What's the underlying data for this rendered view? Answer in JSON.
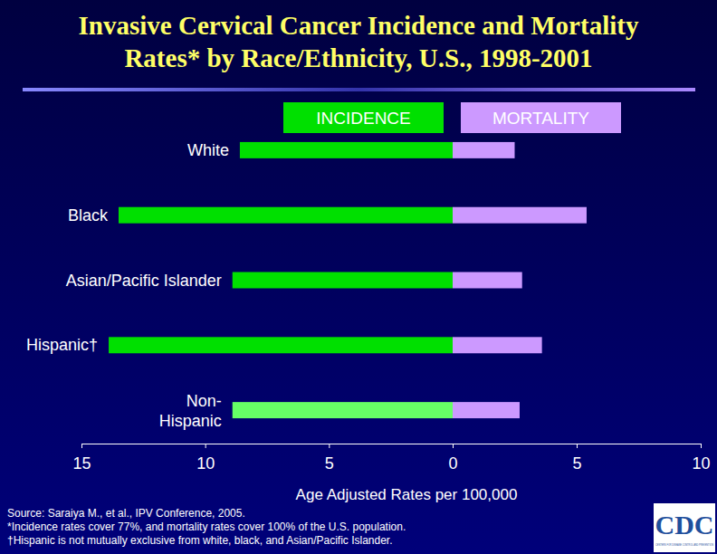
{
  "title": "Invasive Cervical Cancer Incidence and Mortality Rates* by Race/Ethnicity, U.S., 1998-2001",
  "x_label": "Age Adjusted Rates per 100,000",
  "notes": [
    "Source: Saraiya M., et al., IPV Conference, 2005.",
    "*Incidence rates cover 77%, and mortality rates cover 100% of the U.S. population.",
    "†Hispanic is not mutually exclusive from white, black, and Asian/Pacific Islander."
  ],
  "logo": [
    "CDC",
    "CENTERS FOR DISEASE CONTROL AND PREVENTION"
  ],
  "chart_data": [
    {
      "type": "bar",
      "title": "INCIDENCE",
      "orientation": "horizontal",
      "categories": [
        "White",
        "Black",
        "Asian/Pacific Islander",
        "Hispanic†",
        "Non-Hispanic"
      ],
      "values": [
        8.6,
        13.5,
        8.9,
        13.9,
        8.9
      ],
      "colors": [
        "#00e000",
        "#00e000",
        "#00e000",
        "#00e000",
        "#66ff66"
      ],
      "xlim": [
        0,
        15
      ],
      "xticks": [
        5,
        10,
        15
      ]
    },
    {
      "type": "bar",
      "title": "MORTALITY",
      "orientation": "horizontal",
      "categories": [
        "White",
        "Black",
        "Asian/Pacific Islander",
        "Hispanic†",
        "Non-Hispanic"
      ],
      "values": [
        2.5,
        5.4,
        2.8,
        3.6,
        2.7
      ],
      "color": "#cc99ff",
      "xlim": [
        0,
        10
      ],
      "xticks": [
        0,
        5,
        10
      ]
    }
  ]
}
